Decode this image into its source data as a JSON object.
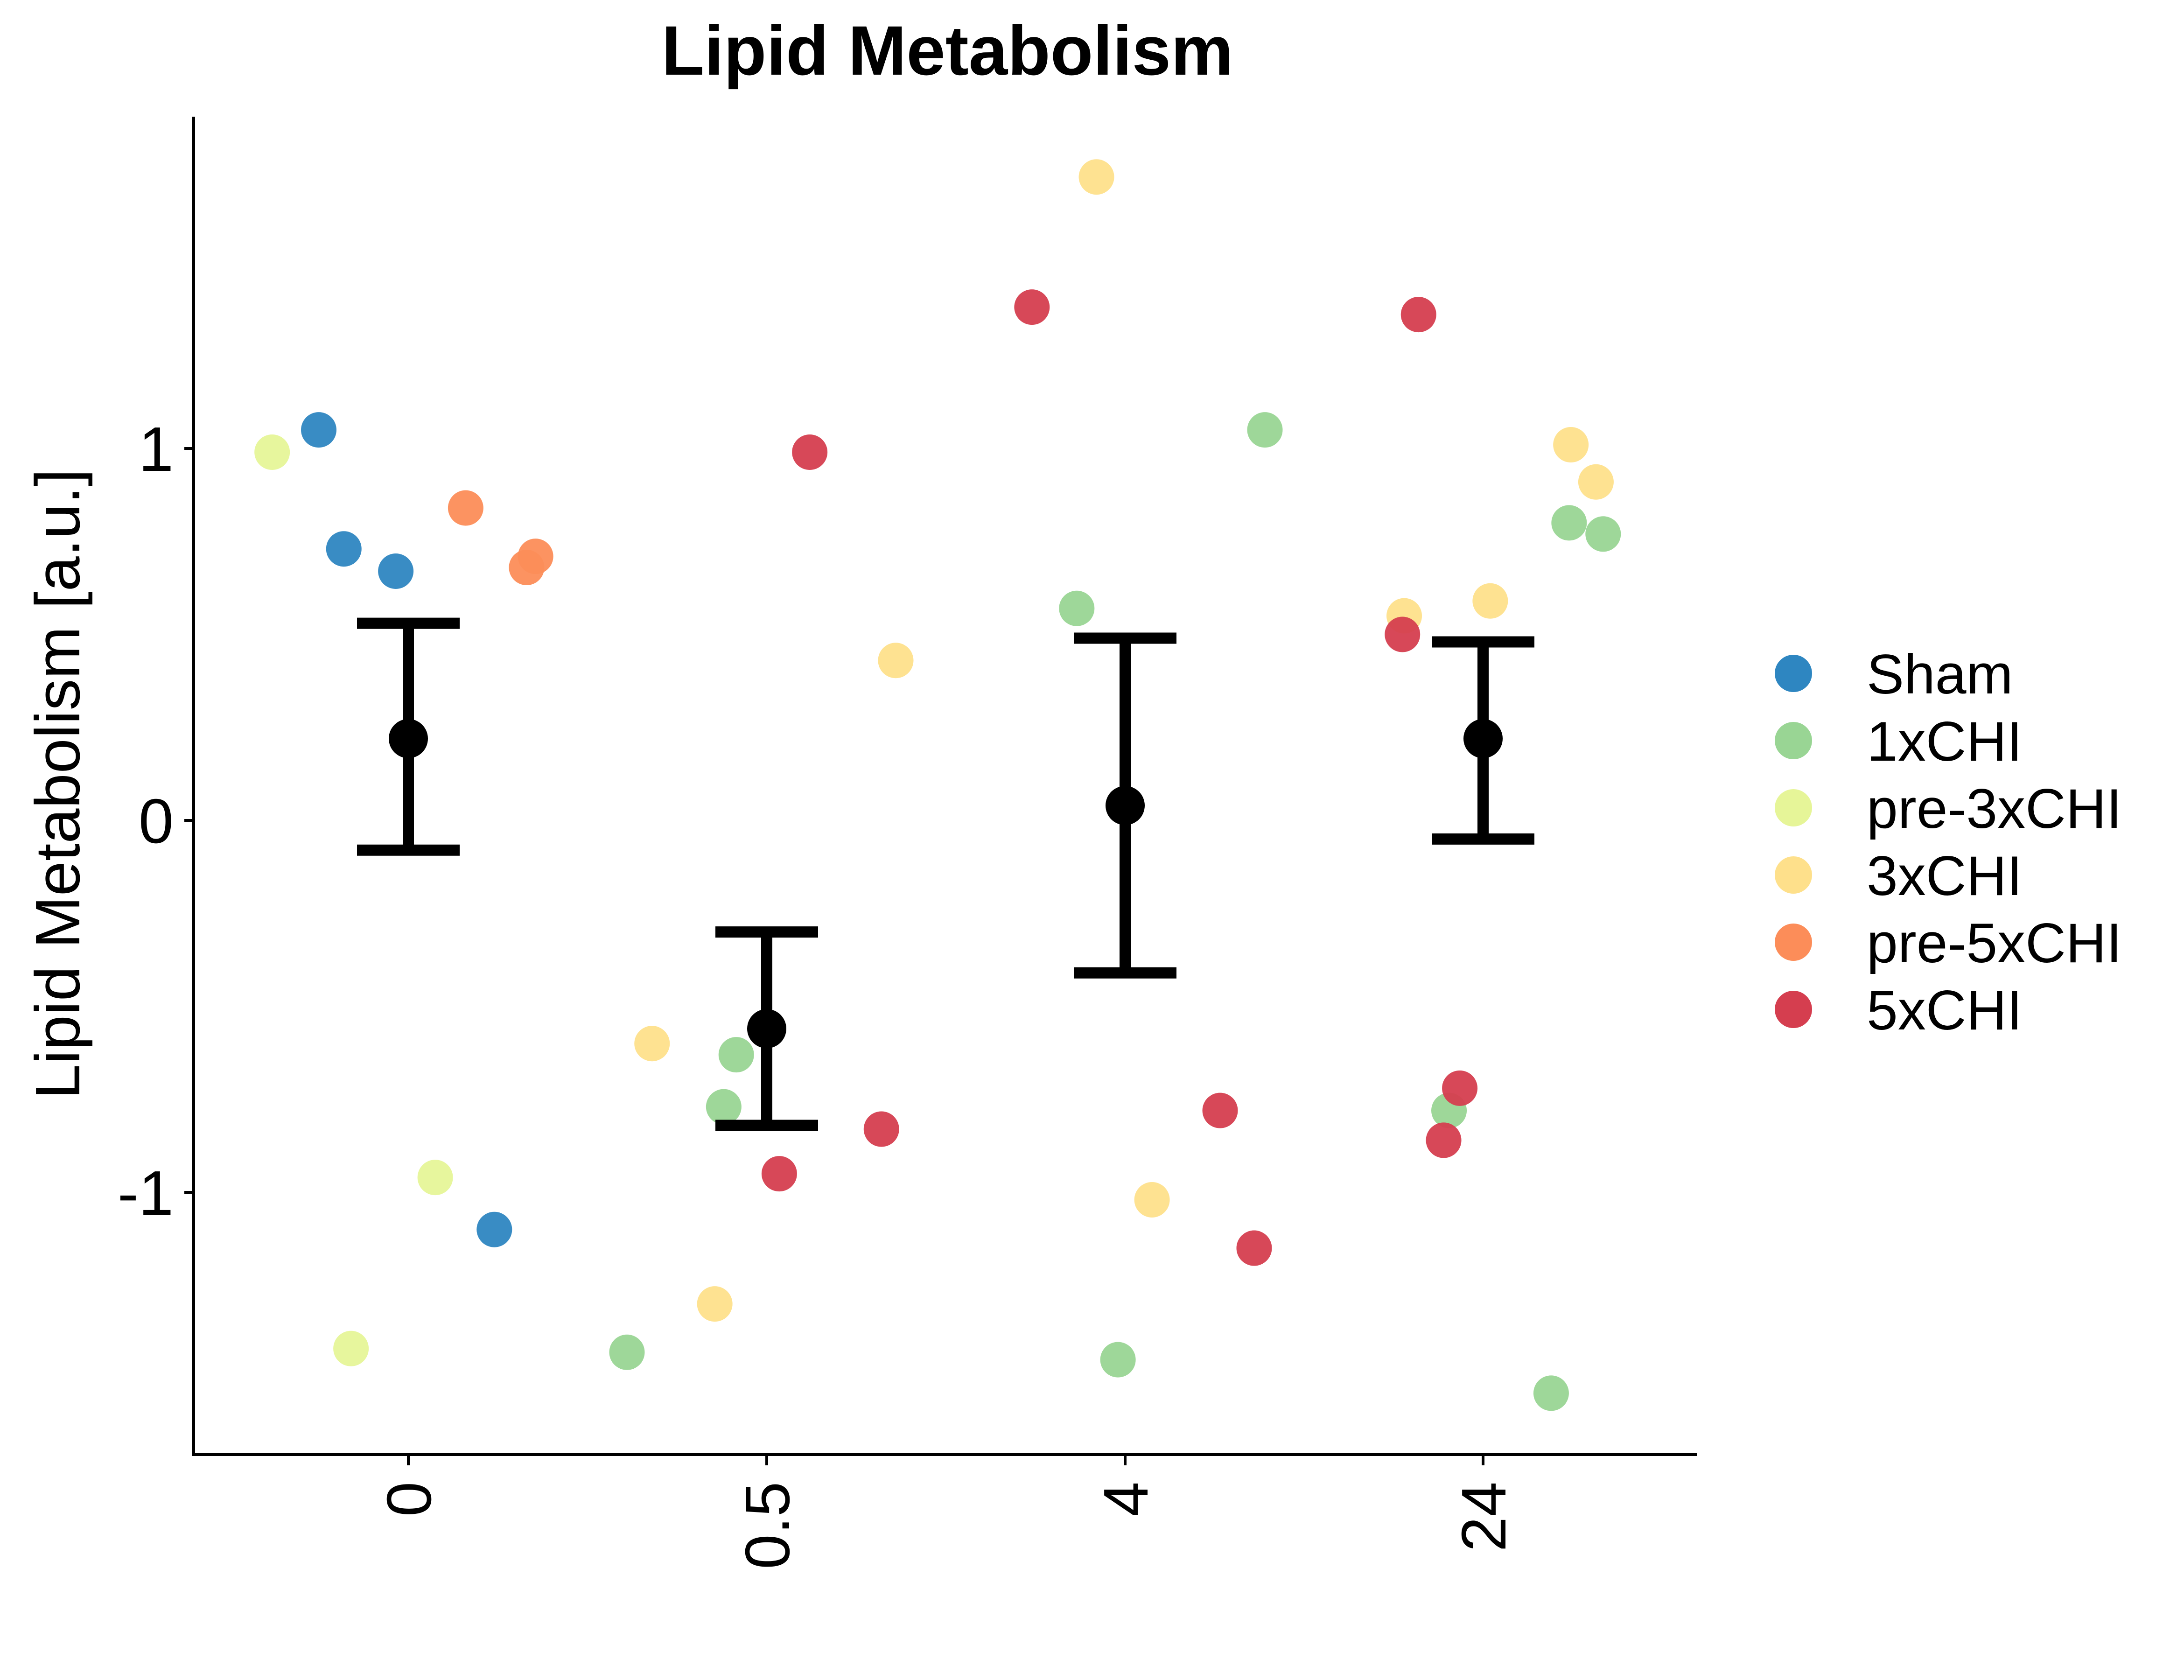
{
  "chart_data": {
    "type": "scatter",
    "title": "Lipid Metabolism",
    "xlabel": "",
    "ylabel": "Lipid Metabolism [a.u.]",
    "categories": [
      "0",
      "0.5",
      "4",
      "24"
    ],
    "yticks": [
      -1,
      0,
      1
    ],
    "ylim": [
      -1.7,
      1.9
    ],
    "grid": false,
    "legend_position": "right",
    "groups": [
      {
        "name": "Sham",
        "color": "#2E86C1"
      },
      {
        "name": "1xCHI",
        "color": "#99D594"
      },
      {
        "name": "pre-3xCHI",
        "color": "#E6F598"
      },
      {
        "name": "3xCHI",
        "color": "#FEE08B"
      },
      {
        "name": "pre-5xCHI",
        "color": "#FC8D59"
      },
      {
        "name": "5xCHI",
        "color": "#D53E4F"
      }
    ],
    "points": [
      {
        "category": "0",
        "offset": -0.25,
        "group": "Sham",
        "value": 1.05
      },
      {
        "category": "0",
        "offset": -0.18,
        "group": "Sham",
        "value": 0.73
      },
      {
        "category": "0",
        "offset": -0.035,
        "group": "Sham",
        "value": 0.67
      },
      {
        "category": "0",
        "offset": 0.24,
        "group": "Sham",
        "value": -1.1
      },
      {
        "category": "0",
        "offset": -0.38,
        "group": "pre-3xCHI",
        "value": 0.99
      },
      {
        "category": "0",
        "offset": 0.075,
        "group": "pre-3xCHI",
        "value": -0.96
      },
      {
        "category": "0",
        "offset": -0.16,
        "group": "pre-3xCHI",
        "value": -1.42
      },
      {
        "category": "0",
        "offset": 0.16,
        "group": "pre-5xCHI",
        "value": 0.84
      },
      {
        "category": "0",
        "offset": 0.33,
        "group": "pre-5xCHI",
        "value": 0.68
      },
      {
        "category": "0",
        "offset": 0.355,
        "group": "pre-5xCHI",
        "value": 0.71
      },
      {
        "category": "0.5",
        "offset": -0.39,
        "group": "1xCHI",
        "value": -1.43
      },
      {
        "category": "0.5",
        "offset": -0.12,
        "group": "1xCHI",
        "value": -0.77
      },
      {
        "category": "0.5",
        "offset": -0.085,
        "group": "1xCHI",
        "value": -0.63
      },
      {
        "category": "0.5",
        "offset": -0.32,
        "group": "3xCHI",
        "value": -0.6
      },
      {
        "category": "0.5",
        "offset": -0.145,
        "group": "3xCHI",
        "value": -1.3
      },
      {
        "category": "0.5",
        "offset": 0.36,
        "group": "3xCHI",
        "value": 0.43
      },
      {
        "category": "0.5",
        "offset": 0.12,
        "group": "5xCHI",
        "value": 0.99
      },
      {
        "category": "0.5",
        "offset": 0.035,
        "group": "5xCHI",
        "value": -0.95
      },
      {
        "category": "0.5",
        "offset": 0.32,
        "group": "5xCHI",
        "value": -0.83
      },
      {
        "category": "4",
        "offset": -0.135,
        "group": "1xCHI",
        "value": 0.57
      },
      {
        "category": "4",
        "offset": 0.39,
        "group": "1xCHI",
        "value": 1.05
      },
      {
        "category": "4",
        "offset": -0.02,
        "group": "1xCHI",
        "value": -1.45
      },
      {
        "category": "4",
        "offset": -0.08,
        "group": "3xCHI",
        "value": 1.73
      },
      {
        "category": "4",
        "offset": 0.075,
        "group": "3xCHI",
        "value": -1.02
      },
      {
        "category": "4",
        "offset": -0.26,
        "group": "5xCHI",
        "value": 1.38
      },
      {
        "category": "4",
        "offset": 0.265,
        "group": "5xCHI",
        "value": -0.78
      },
      {
        "category": "4",
        "offset": 0.36,
        "group": "5xCHI",
        "value": -1.15
      },
      {
        "category": "24",
        "offset": -0.22,
        "group": "3xCHI",
        "value": 0.55
      },
      {
        "category": "24",
        "offset": 0.02,
        "group": "3xCHI",
        "value": 0.59
      },
      {
        "category": "24",
        "offset": 0.245,
        "group": "3xCHI",
        "value": 1.01
      },
      {
        "category": "24",
        "offset": 0.315,
        "group": "3xCHI",
        "value": 0.91
      },
      {
        "category": "24",
        "offset": 0.24,
        "group": "1xCHI",
        "value": 0.8
      },
      {
        "category": "24",
        "offset": 0.335,
        "group": "1xCHI",
        "value": 0.77
      },
      {
        "category": "24",
        "offset": -0.095,
        "group": "1xCHI",
        "value": -0.78
      },
      {
        "category": "24",
        "offset": 0.19,
        "group": "1xCHI",
        "value": -1.54
      },
      {
        "category": "24",
        "offset": -0.18,
        "group": "5xCHI",
        "value": 1.36
      },
      {
        "category": "24",
        "offset": -0.225,
        "group": "5xCHI",
        "value": 0.5
      },
      {
        "category": "24",
        "offset": -0.065,
        "group": "5xCHI",
        "value": -0.72
      },
      {
        "category": "24",
        "offset": -0.11,
        "group": "5xCHI",
        "value": -0.86
      }
    ],
    "summary": [
      {
        "category": "0",
        "mean": 0.22,
        "low": -0.08,
        "high": 0.53
      },
      {
        "category": "0.5",
        "mean": -0.56,
        "low": -0.82,
        "high": -0.3
      },
      {
        "category": "4",
        "mean": 0.04,
        "low": -0.41,
        "high": 0.49
      },
      {
        "category": "24",
        "mean": 0.22,
        "low": -0.05,
        "high": 0.48
      }
    ]
  }
}
